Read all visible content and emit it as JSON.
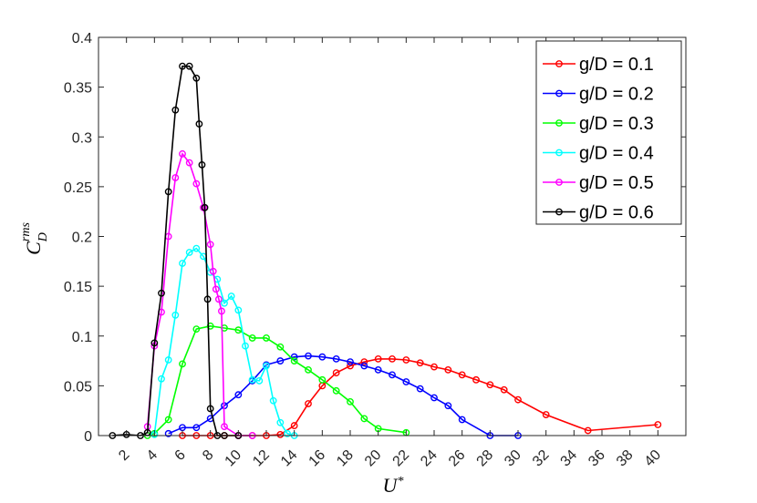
{
  "chart_data": {
    "type": "line",
    "xlabel": "U*",
    "ylabel": "C_D^rms",
    "xlim": [
      0,
      42
    ],
    "ylim": [
      0,
      0.4
    ],
    "xticks": [
      2,
      4,
      6,
      8,
      10,
      12,
      14,
      16,
      18,
      20,
      22,
      24,
      26,
      28,
      30,
      32,
      34,
      36,
      38,
      40
    ],
    "yticks": [
      0,
      0.05,
      0.1,
      0.15,
      0.2,
      0.25,
      0.3,
      0.35,
      0.4
    ],
    "ytick_labels": [
      "0",
      "0.05",
      "0.1",
      "0.15",
      "0.2",
      "0.25",
      "0.3",
      "0.35",
      "0.4"
    ],
    "grid": false,
    "legend_position": "top-right",
    "series": [
      {
        "name": "g/D = 0.1",
        "color": "#ff0000",
        "x": [
          6,
          7,
          8,
          9,
          10,
          11,
          12,
          13,
          14,
          15,
          16,
          17,
          18,
          19,
          20,
          21,
          22,
          23,
          24,
          25,
          26,
          27,
          28,
          29,
          30,
          32,
          35,
          40
        ],
        "y": [
          0,
          0,
          0,
          0,
          0,
          0,
          0,
          0.001,
          0.01,
          0.032,
          0.05,
          0.063,
          0.07,
          0.074,
          0.077,
          0.077,
          0.076,
          0.073,
          0.069,
          0.066,
          0.061,
          0.056,
          0.051,
          0.046,
          0.036,
          0.021,
          0.005,
          0.011
        ]
      },
      {
        "name": "g/D = 0.2",
        "color": "#0000ff",
        "x": [
          5,
          6,
          7,
          8,
          9,
          10,
          11,
          12,
          13,
          14,
          15,
          16,
          17,
          18,
          19,
          20,
          21,
          22,
          23,
          24,
          25,
          26,
          28,
          30
        ],
        "y": [
          0.002,
          0.008,
          0.008,
          0.017,
          0.03,
          0.041,
          0.055,
          0.071,
          0.075,
          0.079,
          0.08,
          0.079,
          0.077,
          0.074,
          0.07,
          0.066,
          0.061,
          0.054,
          0.047,
          0.038,
          0.03,
          0.016,
          0,
          0
        ]
      },
      {
        "name": "g/D = 0.3",
        "color": "#00ff00",
        "x": [
          3.5,
          4,
          5,
          6,
          7,
          8,
          9,
          10,
          11,
          12,
          13,
          14,
          15,
          16,
          17,
          18,
          19,
          20,
          22
        ],
        "y": [
          0,
          0.002,
          0.016,
          0.072,
          0.107,
          0.11,
          0.108,
          0.106,
          0.098,
          0.098,
          0.089,
          0.075,
          0.066,
          0.056,
          0.045,
          0.034,
          0.017,
          0.007,
          0.003
        ]
      },
      {
        "name": "g/D = 0.4",
        "color": "#00ffff",
        "x": [
          4,
          4.5,
          5,
          5.5,
          6,
          6.5,
          7,
          7.5,
          8,
          8.5,
          9,
          9.5,
          10,
          10.5,
          11,
          11.5,
          12,
          12.5,
          13,
          13.5,
          14
        ],
        "y": [
          0.001,
          0.057,
          0.076,
          0.121,
          0.173,
          0.184,
          0.188,
          0.18,
          0.164,
          0.157,
          0.133,
          0.14,
          0.126,
          0.09,
          0.056,
          0.055,
          0.07,
          0.035,
          0.013,
          0.002,
          0
        ]
      },
      {
        "name": "g/D = 0.5",
        "color": "#ff00ff",
        "x": [
          3.5,
          4,
          4.5,
          5,
          5.5,
          6,
          6.5,
          7,
          7.5,
          8,
          8.2,
          8.4,
          8.6,
          8.8,
          9,
          10,
          11
        ],
        "y": [
          0.009,
          0.09,
          0.124,
          0.2,
          0.259,
          0.283,
          0.274,
          0.253,
          0.229,
          0.192,
          0.165,
          0.147,
          0.137,
          0.125,
          0.009,
          0,
          0
        ]
      },
      {
        "name": "g/D = 0.6",
        "color": "#000000",
        "x": [
          1,
          2,
          3,
          3.5,
          4,
          4.5,
          5,
          5.5,
          6,
          6.5,
          7,
          7.2,
          7.4,
          7.6,
          7.8,
          8,
          8.5,
          9,
          10
        ],
        "y": [
          0,
          0.001,
          0,
          0.003,
          0.093,
          0.143,
          0.245,
          0.327,
          0.371,
          0.371,
          0.359,
          0.313,
          0.272,
          0.229,
          0.137,
          0.027,
          0,
          0,
          0
        ]
      }
    ]
  }
}
